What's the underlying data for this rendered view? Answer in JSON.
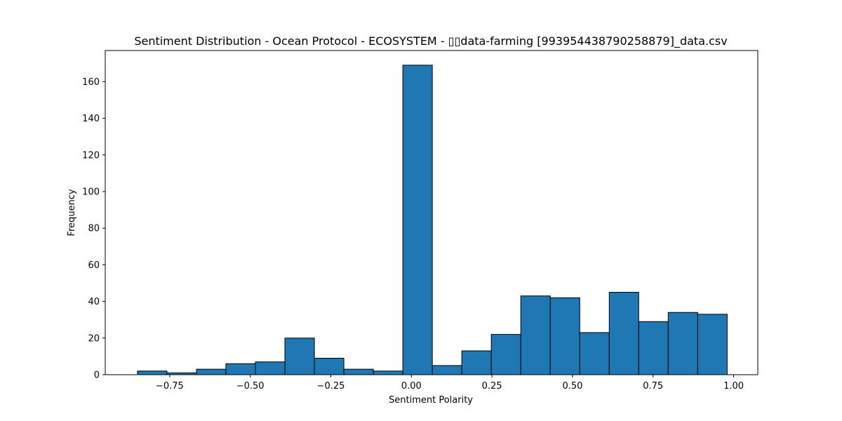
{
  "chart_data": {
    "type": "bar",
    "title": "Sentiment Distribution - Ocean Protocol - ECOSYSTEM - ▯▯data-farming [993954438790258879]_data.csv",
    "xlabel": "Sentiment Polarity",
    "ylabel": "Frequency",
    "xlim": [
      -0.95,
      1.075
    ],
    "ylim": [
      0,
      177
    ],
    "bar_color": "#1f77b4",
    "edge_color": "#000000",
    "grid": false,
    "x_ticks": [
      {
        "value": -0.75,
        "label": "−0.75"
      },
      {
        "value": -0.5,
        "label": "−0.50"
      },
      {
        "value": -0.25,
        "label": "−0.25"
      },
      {
        "value": 0.0,
        "label": "0.00"
      },
      {
        "value": 0.25,
        "label": "0.25"
      },
      {
        "value": 0.5,
        "label": "0.50"
      },
      {
        "value": 0.75,
        "label": "0.75"
      },
      {
        "value": 1.0,
        "label": "1.00"
      }
    ],
    "y_ticks": [
      {
        "value": 0,
        "label": "0"
      },
      {
        "value": 20,
        "label": "20"
      },
      {
        "value": 40,
        "label": "40"
      },
      {
        "value": 60,
        "label": "60"
      },
      {
        "value": 80,
        "label": "80"
      },
      {
        "value": 100,
        "label": "100"
      },
      {
        "value": 120,
        "label": "120"
      },
      {
        "value": 140,
        "label": "140"
      },
      {
        "value": 160,
        "label": "160"
      }
    ],
    "bins": [
      {
        "start": -0.85,
        "end": -0.7585,
        "count": 2
      },
      {
        "start": -0.7585,
        "end": -0.667,
        "count": 1
      },
      {
        "start": -0.667,
        "end": -0.5755,
        "count": 3
      },
      {
        "start": -0.5755,
        "end": -0.484,
        "count": 6
      },
      {
        "start": -0.484,
        "end": -0.3925,
        "count": 7
      },
      {
        "start": -0.3925,
        "end": -0.301,
        "count": 20
      },
      {
        "start": -0.301,
        "end": -0.2095,
        "count": 9
      },
      {
        "start": -0.2095,
        "end": -0.118,
        "count": 3
      },
      {
        "start": -0.118,
        "end": -0.0265,
        "count": 2
      },
      {
        "start": -0.0265,
        "end": 0.065,
        "count": 169
      },
      {
        "start": 0.065,
        "end": 0.1565,
        "count": 5
      },
      {
        "start": 0.1565,
        "end": 0.248,
        "count": 13
      },
      {
        "start": 0.248,
        "end": 0.3395,
        "count": 22
      },
      {
        "start": 0.3395,
        "end": 0.431,
        "count": 43
      },
      {
        "start": 0.431,
        "end": 0.5225,
        "count": 42
      },
      {
        "start": 0.5225,
        "end": 0.614,
        "count": 23
      },
      {
        "start": 0.614,
        "end": 0.7055,
        "count": 45
      },
      {
        "start": 0.7055,
        "end": 0.797,
        "count": 29
      },
      {
        "start": 0.797,
        "end": 0.8885,
        "count": 34
      },
      {
        "start": 0.8885,
        "end": 0.98,
        "count": 33
      }
    ]
  }
}
